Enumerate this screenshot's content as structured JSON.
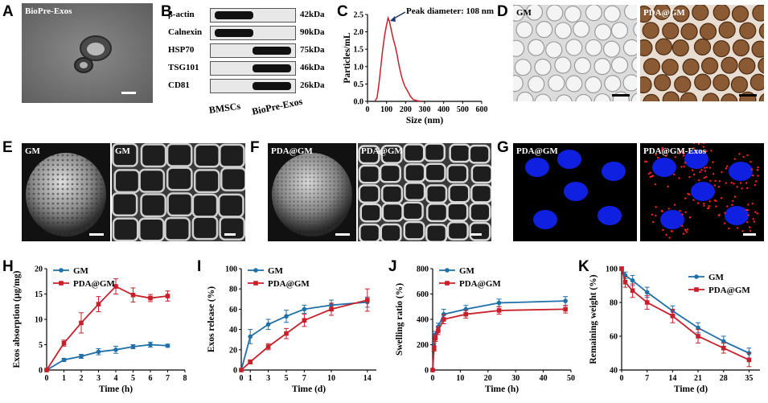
{
  "panel_labels": {
    "A": "A",
    "B": "B",
    "C": "C",
    "D": "D",
    "E": "E",
    "F": "F",
    "G": "G",
    "H": "H",
    "I": "I",
    "J": "J",
    "K": "K"
  },
  "panelA": {
    "label": "BioPre-Exos"
  },
  "panelB": {
    "rows": [
      {
        "name": "β-actin",
        "kda": "42kDa",
        "bands": [
          1,
          0
        ]
      },
      {
        "name": "Calnexin",
        "kda": "90kDa",
        "bands": [
          1,
          0
        ]
      },
      {
        "name": "HSP70",
        "kda": "75kDa",
        "bands": [
          0,
          1
        ]
      },
      {
        "name": "TSG101",
        "kda": "46kDa",
        "bands": [
          0,
          1
        ]
      },
      {
        "name": "CD81",
        "kda": "26kDa",
        "bands": [
          0,
          1
        ]
      }
    ],
    "lane_labels": [
      "BMSCs",
      "BioPre-Exos"
    ]
  },
  "panelD": {
    "left_label": "GM",
    "right_label": "PDA@GM"
  },
  "panelE": {
    "left_label": "GM",
    "right_label": "GM"
  },
  "panelF": {
    "left_label": "PDA@GM",
    "right_label": "PDA@GM"
  },
  "panelG": {
    "left_label": "PDA@GM",
    "right_label": "PDA@GM-Exos"
  },
  "colors": {
    "GM": "#1f6fa8",
    "PDA@GM": "#c8202a",
    "nta": "#c8202a"
  },
  "chart_data": [
    {
      "id": "C",
      "type": "line",
      "annotation": "Peak diameter: 108 nm",
      "xlabel": "Size (nm)",
      "ylabel": "Particles/mL",
      "xlim": [
        0,
        600
      ],
      "ylim": [
        0,
        2.5
      ],
      "xticks": [
        0,
        100,
        200,
        300,
        400,
        500,
        600
      ],
      "yticks": [
        0.0,
        0.5,
        1.0,
        1.5,
        2.0,
        2.5
      ],
      "ytick_labels": [
        "0.0",
        "0.5",
        "1.0",
        "1.5",
        "2.0",
        "2.5"
      ],
      "series": [
        {
          "x": [
            40,
            50,
            60,
            70,
            80,
            90,
            100,
            108,
            115,
            125,
            135,
            145,
            155,
            165,
            175,
            185,
            195,
            210,
            225,
            240,
            260,
            280
          ],
          "values": [
            0.02,
            0.1,
            0.5,
            1.0,
            1.5,
            1.9,
            2.2,
            2.4,
            2.3,
            2.05,
            1.8,
            1.6,
            1.35,
            1.05,
            0.8,
            0.6,
            0.45,
            0.3,
            0.15,
            0.05,
            0.02,
            0.0
          ]
        }
      ]
    },
    {
      "id": "H",
      "type": "line",
      "xlabel": "Time (h)",
      "ylabel": "Exos absorption (μg/mg)",
      "xlim": [
        0,
        8
      ],
      "ylim": [
        0,
        20
      ],
      "xticks": [
        0,
        1,
        2,
        3,
        4,
        5,
        6,
        7,
        8
      ],
      "yticks": [
        0,
        5,
        10,
        15,
        20
      ],
      "x": [
        0,
        1,
        2,
        3,
        4,
        5,
        6,
        7
      ],
      "series": [
        {
          "name": "GM",
          "values": [
            0,
            2.0,
            2.7,
            3.6,
            4.0,
            4.6,
            5.0,
            4.8
          ],
          "err": [
            0,
            0.3,
            0.4,
            0.6,
            0.7,
            0.4,
            0.5,
            0.3
          ]
        },
        {
          "name": "PDA@GM",
          "values": [
            0,
            5.3,
            9.3,
            13.0,
            16.5,
            14.8,
            14.2,
            14.6
          ],
          "err": [
            0,
            0.6,
            2.0,
            1.5,
            1.5,
            1.4,
            0.7,
            1.0
          ]
        }
      ]
    },
    {
      "id": "I",
      "type": "line",
      "xlabel": "Time (d)",
      "ylabel": "Exos release (%)",
      "xlim": [
        0,
        15
      ],
      "ylim": [
        0,
        100
      ],
      "xticks": [
        0,
        1,
        3,
        5,
        7,
        10,
        14
      ],
      "yticks": [
        0,
        20,
        40,
        60,
        80,
        100
      ],
      "x": [
        0,
        1,
        3,
        5,
        7,
        10,
        14
      ],
      "series": [
        {
          "name": "GM",
          "values": [
            0,
            33,
            45,
            53,
            60,
            64,
            67
          ],
          "err": [
            0,
            7,
            5,
            6,
            4,
            5,
            5
          ]
        },
        {
          "name": "PDA@GM",
          "values": [
            0,
            8,
            23,
            36,
            49,
            60,
            69
          ],
          "err": [
            0,
            2,
            3,
            5,
            6,
            6,
            11
          ]
        }
      ]
    },
    {
      "id": "J",
      "type": "line",
      "xlabel": "Time (h)",
      "ylabel": "Swelling ratio (%)",
      "xlim": [
        0,
        50
      ],
      "ylim": [
        0,
        800
      ],
      "xticks": [
        0,
        10,
        20,
        30,
        40,
        50
      ],
      "yticks": [
        0,
        200,
        400,
        600,
        800
      ],
      "x": [
        0,
        0.5,
        1,
        2,
        4,
        12,
        24,
        48
      ],
      "series": [
        {
          "name": "GM",
          "values": [
            0,
            190,
            280,
            340,
            440,
            480,
            530,
            545
          ],
          "err": [
            0,
            20,
            25,
            30,
            40,
            30,
            30,
            35
          ]
        },
        {
          "name": "PDA@GM",
          "values": [
            0,
            170,
            250,
            310,
            400,
            440,
            470,
            480
          ],
          "err": [
            0,
            20,
            25,
            30,
            35,
            30,
            30,
            30
          ]
        }
      ]
    },
    {
      "id": "K",
      "type": "line",
      "xlabel": "Time (d)",
      "ylabel": "Remaining weight (%)",
      "xlim": [
        0,
        38
      ],
      "ylim": [
        40,
        100
      ],
      "xticks": [
        0,
        7,
        14,
        21,
        28,
        35
      ],
      "yticks": [
        40,
        60,
        80,
        100
      ],
      "x": [
        0,
        1,
        3,
        7,
        14,
        21,
        28,
        35
      ],
      "series": [
        {
          "name": "GM",
          "values": [
            100,
            96,
            93,
            86,
            75,
            65,
            57,
            50
          ],
          "err": [
            1,
            2,
            3,
            3,
            3,
            3,
            3,
            3
          ]
        },
        {
          "name": "PDA@GM",
          "values": [
            100,
            92,
            87,
            80,
            72,
            60,
            53,
            46
          ],
          "err": [
            1,
            3,
            4,
            4,
            4,
            4,
            3,
            4
          ]
        }
      ]
    }
  ]
}
